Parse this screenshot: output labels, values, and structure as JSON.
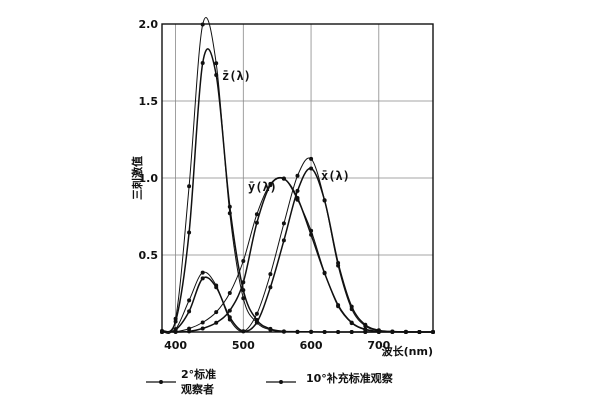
{
  "chart_data": {
    "type": "line",
    "title": "",
    "xlabel": "波长(nm)",
    "ylabel": "三刺激值",
    "xlim": [
      380,
      780
    ],
    "ylim": [
      0,
      2.0
    ],
    "x_ticks": [
      "400",
      "500",
      "600",
      "700"
    ],
    "y_ticks": [
      "0.5",
      "1.0",
      "1.5",
      "2.0"
    ],
    "grid": true,
    "curve_labels": {
      "x": "x̄(λ)",
      "y": "ȳ(λ)",
      "z": "z̄(λ)"
    },
    "legend": {
      "placement": "bottom",
      "entries": [
        {
          "label": "2°标准观察者",
          "label_line1": "2°标准",
          "label_line2": "观察者",
          "marker": "dot"
        },
        {
          "label": "10°补充标准观察",
          "marker": "dot"
        }
      ]
    },
    "series": [
      {
        "observer": "2°标准观察者",
        "function": "x̄(λ)",
        "x": [
          380,
          400,
          420,
          440,
          460,
          480,
          500,
          520,
          540,
          560,
          580,
          600,
          620,
          640,
          660,
          680,
          700,
          720,
          740,
          760,
          780
        ],
        "values": [
          0.001,
          0.014,
          0.134,
          0.348,
          0.291,
          0.096,
          0.005,
          0.063,
          0.29,
          0.595,
          0.916,
          1.062,
          0.854,
          0.448,
          0.165,
          0.047,
          0.011,
          0.003,
          0.001,
          0.0,
          0.0
        ]
      },
      {
        "observer": "2°标准观察者",
        "function": "ȳ(λ)",
        "x": [
          380,
          400,
          420,
          440,
          460,
          480,
          500,
          520,
          540,
          560,
          580,
          600,
          620,
          640,
          660,
          680,
          700,
          720,
          740,
          760,
          780
        ],
        "values": [
          0.0,
          0.0,
          0.004,
          0.023,
          0.06,
          0.139,
          0.323,
          0.71,
          0.954,
          0.995,
          0.87,
          0.631,
          0.381,
          0.175,
          0.061,
          0.017,
          0.004,
          0.001,
          0.0,
          0.0,
          0.0
        ]
      },
      {
        "observer": "2°标准观察者",
        "function": "z̄(λ)",
        "x": [
          380,
          400,
          420,
          440,
          460,
          480,
          500,
          520,
          540,
          560,
          580,
          600,
          620,
          640,
          660,
          680,
          700,
          720,
          740,
          760,
          780
        ],
        "values": [
          0.007,
          0.068,
          0.646,
          1.747,
          1.669,
          0.813,
          0.272,
          0.078,
          0.02,
          0.004,
          0.002,
          0.001,
          0.0,
          0.0,
          0.0,
          0.0,
          0.0,
          0.0,
          0.0,
          0.0,
          0.0
        ]
      },
      {
        "observer": "10°补充标准观察",
        "function": "x̄(λ)",
        "x": [
          380,
          400,
          420,
          440,
          460,
          480,
          500,
          520,
          540,
          560,
          580,
          600,
          620,
          640,
          660,
          680,
          700,
          720,
          740,
          760,
          780
        ],
        "values": [
          0.0,
          0.019,
          0.205,
          0.386,
          0.302,
          0.081,
          0.004,
          0.118,
          0.376,
          0.705,
          1.014,
          1.124,
          0.856,
          0.431,
          0.149,
          0.039,
          0.009,
          0.002,
          0.0,
          0.0,
          0.0
        ]
      },
      {
        "observer": "10°补充标准观察",
        "function": "ȳ(λ)",
        "x": [
          380,
          400,
          420,
          440,
          460,
          480,
          500,
          520,
          540,
          560,
          580,
          600,
          620,
          640,
          660,
          680,
          700,
          720,
          740,
          760,
          780
        ],
        "values": [
          0.0,
          0.002,
          0.022,
          0.062,
          0.129,
          0.253,
          0.461,
          0.765,
          0.962,
          0.997,
          0.859,
          0.658,
          0.385,
          0.167,
          0.058,
          0.015,
          0.004,
          0.001,
          0.0,
          0.0,
          0.0
        ]
      },
      {
        "observer": "10°补充标准观察",
        "function": "z̄(λ)",
        "x": [
          380,
          400,
          420,
          440,
          460,
          480,
          500,
          520,
          540,
          560,
          580,
          600,
          620,
          640,
          660,
          680,
          700,
          720,
          740,
          760,
          780
        ],
        "values": [
          0.001,
          0.086,
          0.946,
          1.997,
          1.745,
          0.771,
          0.219,
          0.061,
          0.014,
          0.001,
          0.0,
          0.0,
          0.0,
          0.0,
          0.0,
          0.0,
          0.0,
          0.0,
          0.0,
          0.0,
          0.0
        ]
      }
    ]
  }
}
